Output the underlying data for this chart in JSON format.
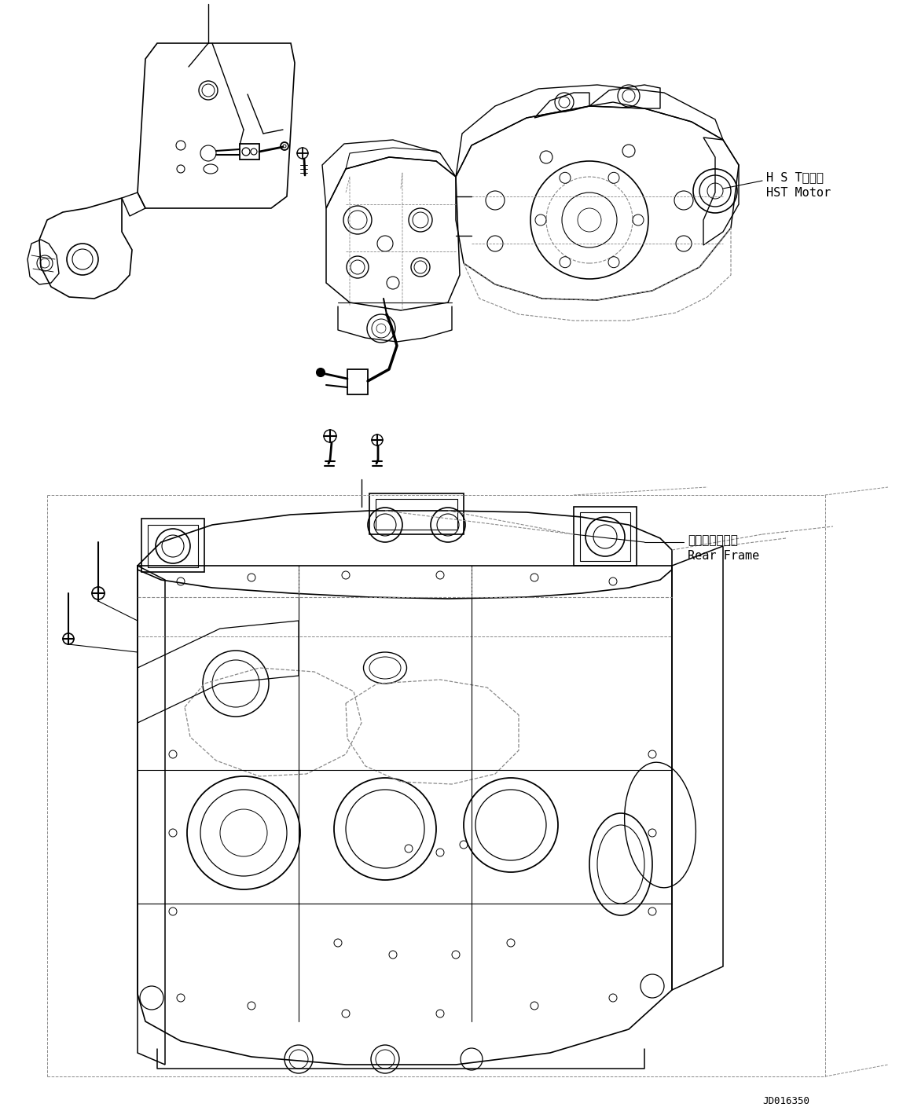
{
  "background_color": "#ffffff",
  "line_color": "#000000",
  "dashed_color": "#888888",
  "label_hst_jp": "H S Tモータ",
  "label_hst_en": "HST Motor",
  "label_rear_jp": "リヤーフレーム",
  "label_rear_en": "Rear Frame",
  "label_code": "JD016350",
  "fig_width": 11.63,
  "fig_height": 14.14,
  "dpi": 100
}
